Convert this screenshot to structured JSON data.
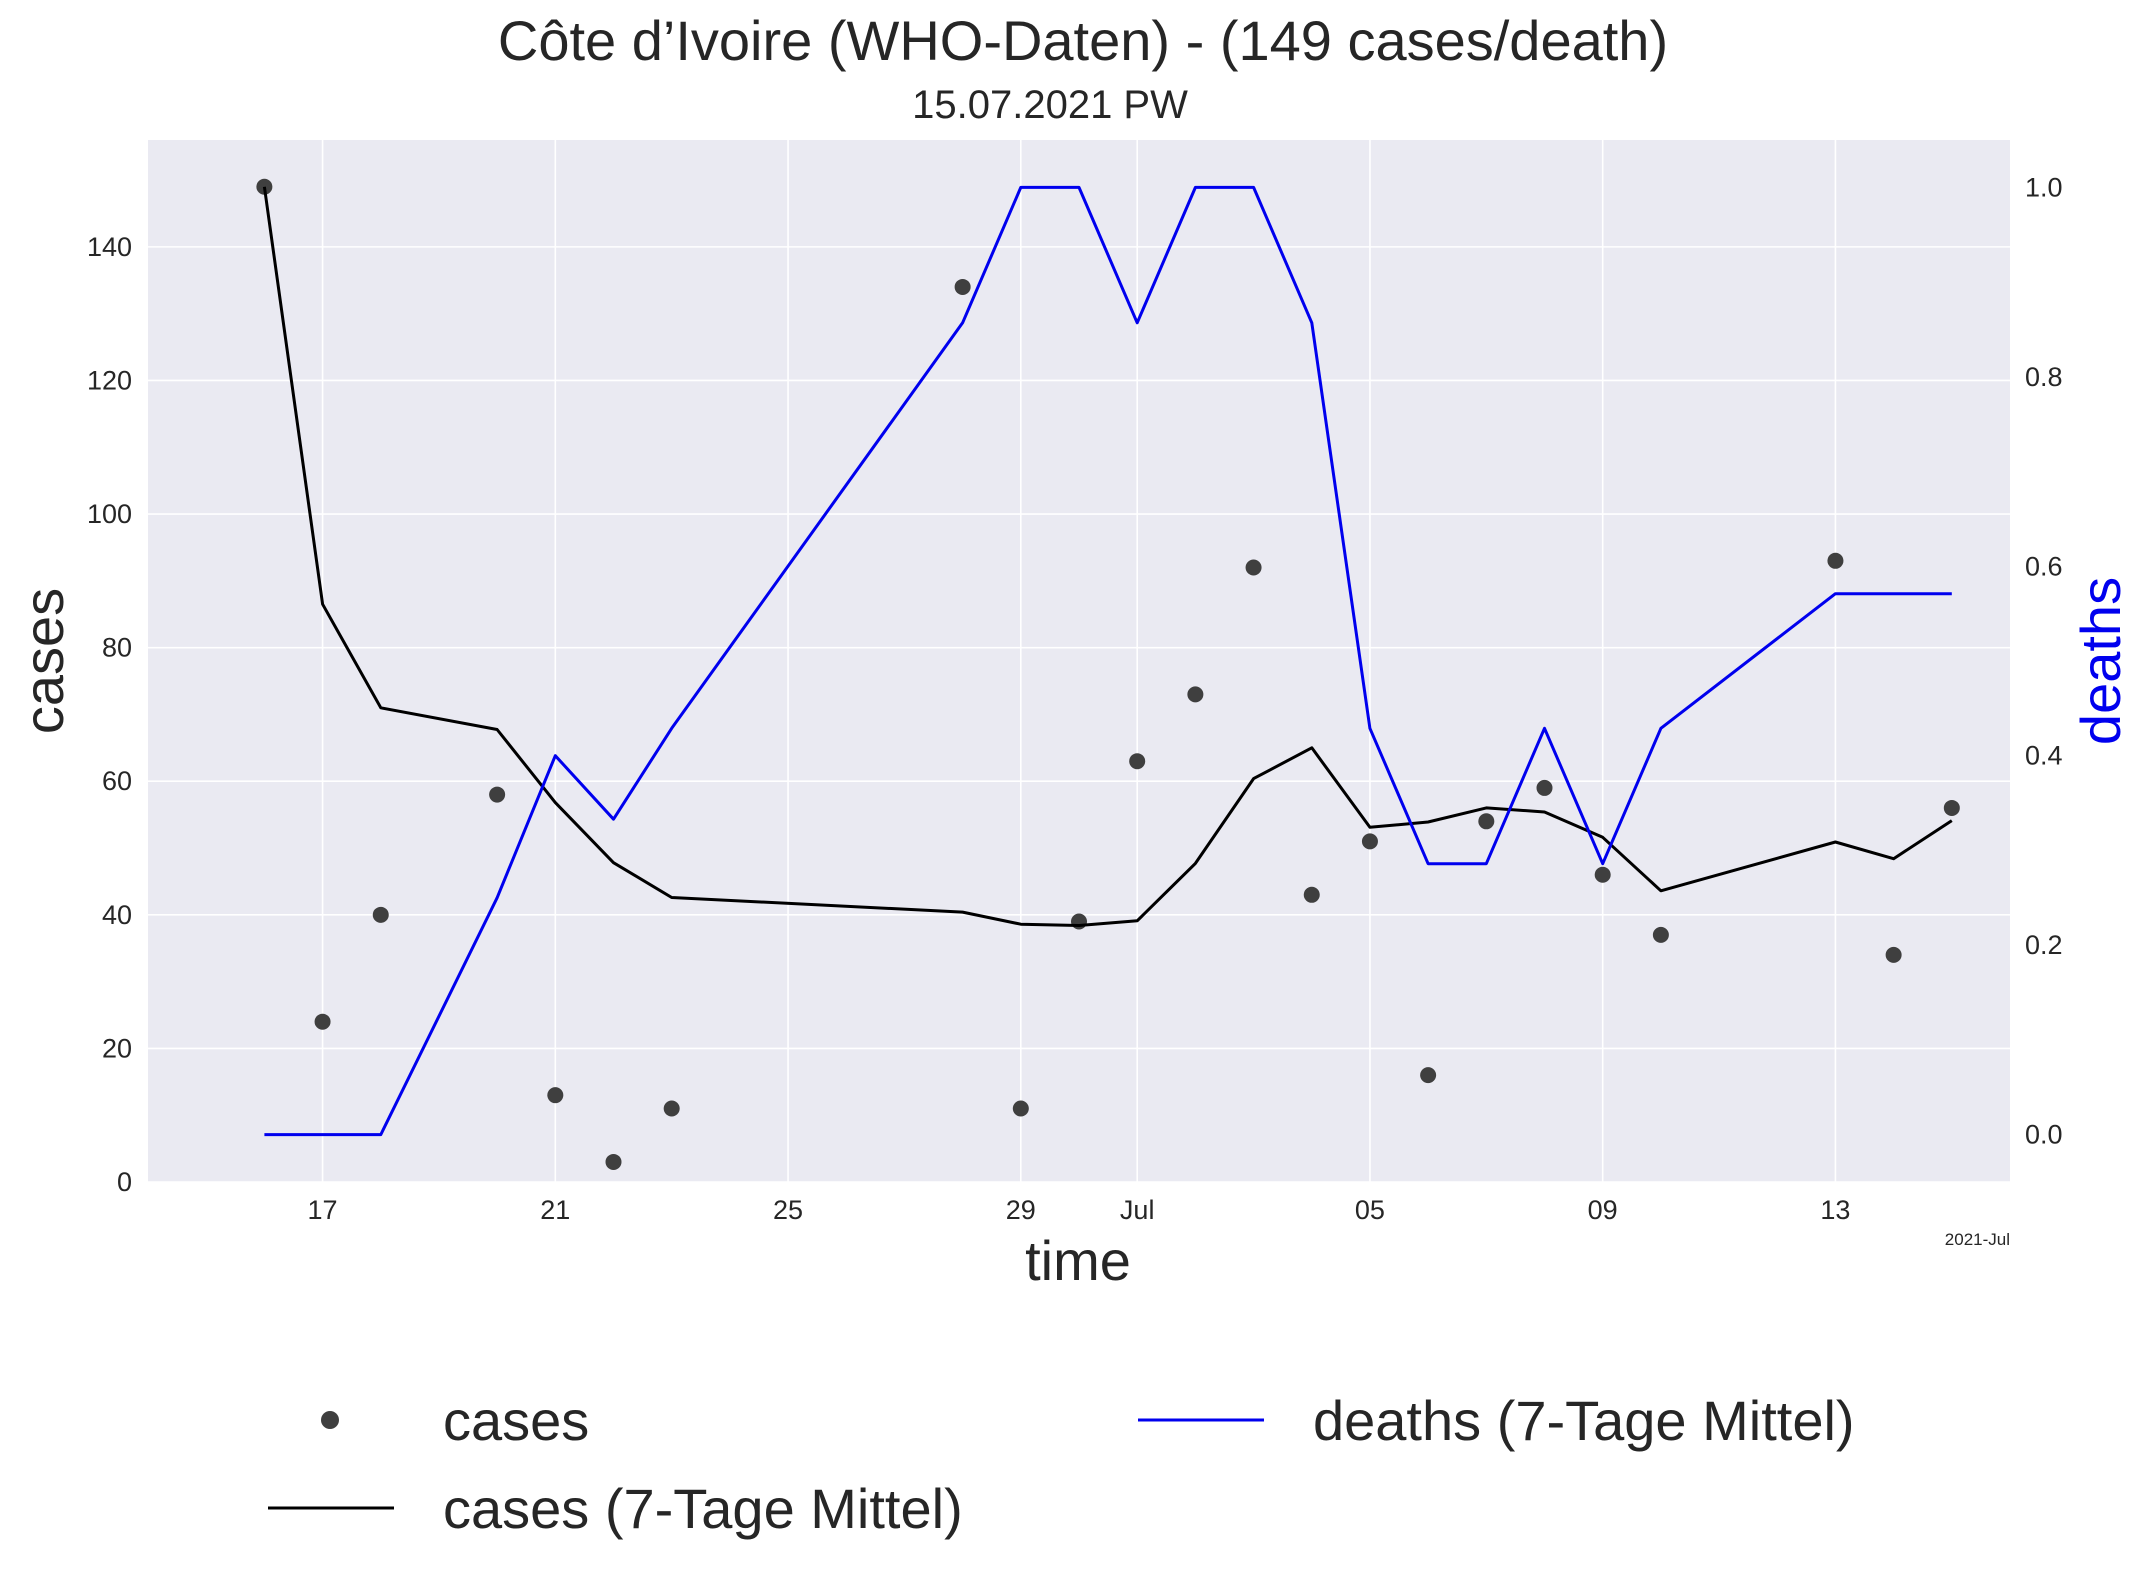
{
  "chart_data": {
    "type": "line",
    "title": "Côte d’Ivoire (WHO-Daten) - (149 cases/death)",
    "subtitle": "15.07.2021 PW",
    "xlabel": "time",
    "ylabel": "cases",
    "ylabel_right": "deaths",
    "x_offset_label": "2021-Jul",
    "x_ticks": [
      {
        "date": "2021-06-17",
        "label": "17"
      },
      {
        "date": "2021-06-21",
        "label": "21"
      },
      {
        "date": "2021-06-25",
        "label": "25"
      },
      {
        "date": "2021-06-29",
        "label": "29"
      },
      {
        "date": "2021-07-01",
        "label": "Jul"
      },
      {
        "date": "2021-07-05",
        "label": "05"
      },
      {
        "date": "2021-07-09",
        "label": "09"
      },
      {
        "date": "2021-07-13",
        "label": "13"
      }
    ],
    "xlim": [
      "2021-06-14",
      "2021-07-16"
    ],
    "ylim": [
      0,
      156
    ],
    "yticks": [
      "0",
      "20",
      "40",
      "60",
      "80",
      "100",
      "120",
      "140"
    ],
    "ylim_right": [
      -0.05,
      1.05
    ],
    "yticks_right": [
      "0.0",
      "0.2",
      "0.4",
      "0.6",
      "0.8",
      "1.0"
    ],
    "grid": true,
    "legend_position": "below",
    "colors": {
      "background": "#eaeaf2",
      "grid": "#ffffff",
      "cases_points": "#3f3f3f",
      "cases_avg": "#000000",
      "deaths_avg": "#0000ee",
      "right_axis_label": "#0000ee"
    },
    "series": [
      {
        "name": "cases",
        "style": "points",
        "x": [
          "2021-06-16",
          "2021-06-17",
          "2021-06-18",
          "2021-06-20",
          "2021-06-21",
          "2021-06-22",
          "2021-06-23",
          "2021-06-28",
          "2021-06-29",
          "2021-06-30",
          "2021-07-01",
          "2021-07-02",
          "2021-07-03",
          "2021-07-04",
          "2021-07-05",
          "2021-07-06",
          "2021-07-07",
          "2021-07-08",
          "2021-07-09",
          "2021-07-10",
          "2021-07-13",
          "2021-07-14",
          "2021-07-15"
        ],
        "y": [
          149,
          24,
          40,
          58,
          13,
          3,
          11,
          134,
          11,
          39,
          63,
          73,
          92,
          43,
          51,
          16,
          54,
          59,
          46,
          37,
          93,
          34,
          56
        ]
      },
      {
        "name": "cases (7-Tage Mittel)",
        "style": "line",
        "x": [
          "2021-06-16",
          "2021-06-17",
          "2021-06-18",
          "2021-06-20",
          "2021-06-21",
          "2021-06-22",
          "2021-06-23",
          "2021-06-28",
          "2021-06-29",
          "2021-06-30",
          "2021-07-01",
          "2021-07-02",
          "2021-07-03",
          "2021-07-04",
          "2021-07-05",
          "2021-07-06",
          "2021-07-07",
          "2021-07-08",
          "2021-07-09",
          "2021-07-10",
          "2021-07-13",
          "2021-07-14",
          "2021-07-15"
        ],
        "y": [
          149,
          86.5,
          71,
          67.75,
          56.8,
          47.8,
          42.6,
          40.4,
          38.6,
          38.4,
          39.1,
          47.7,
          60.4,
          65.0,
          53.1,
          53.9,
          56.0,
          55.4,
          51.6,
          43.6,
          50.9,
          48.4,
          54.1
        ]
      },
      {
        "name": "deaths (7-Tage Mittel)",
        "style": "line",
        "axis": "right",
        "x": [
          "2021-06-16",
          "2021-06-17",
          "2021-06-18",
          "2021-06-20",
          "2021-06-21",
          "2021-06-22",
          "2021-06-23",
          "2021-06-28",
          "2021-06-29",
          "2021-06-30",
          "2021-07-01",
          "2021-07-02",
          "2021-07-03",
          "2021-07-04",
          "2021-07-05",
          "2021-07-06",
          "2021-07-07",
          "2021-07-08",
          "2021-07-09",
          "2021-07-10",
          "2021-07-13",
          "2021-07-14",
          "2021-07-15"
        ],
        "y": [
          0.0,
          0.0,
          0.0,
          0.25,
          0.4,
          0.333,
          0.429,
          0.857,
          1.0,
          1.0,
          0.857,
          1.0,
          1.0,
          0.857,
          0.429,
          0.286,
          0.286,
          0.429,
          0.286,
          0.429,
          0.571,
          0.571,
          0.571
        ]
      }
    ]
  }
}
